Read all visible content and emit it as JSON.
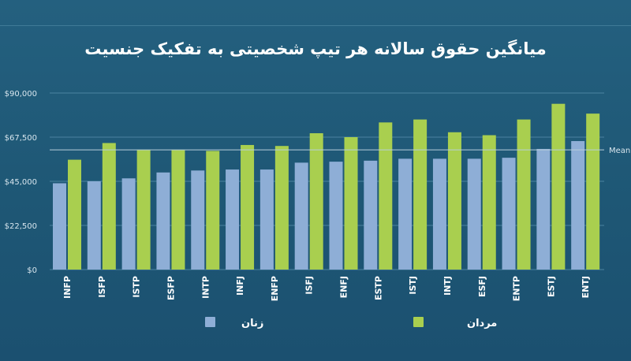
{
  "colors": {
    "background": "#1f5877",
    "women": "#8eaed6",
    "men": "#a9cf4f",
    "grid": "#4b83a0",
    "mean_line": "#b9cfdb"
  },
  "chart_data": {
    "type": "bar",
    "title": "میانگین حقوق سالانه هر تیپ شخصیتی به تفکیک جنسیت",
    "xlabel": "",
    "ylabel": "",
    "ylim": [
      0,
      90000
    ],
    "yticks": [
      0,
      22500,
      45000,
      67500,
      90000
    ],
    "ytick_labels": [
      "$0",
      "$22,500",
      "$45,000",
      "$67,500",
      "$90,000"
    ],
    "grid": true,
    "legend_position": "bottom",
    "categories": [
      "INFP",
      "ISFP",
      "ISTP",
      "ESFP",
      "INTP",
      "INFJ",
      "ENFP",
      "ISFJ",
      "ENFJ",
      "ESTP",
      "ISTJ",
      "INTJ",
      "ESFJ",
      "ENTP",
      "ESTJ",
      "ENTJ"
    ],
    "series": [
      {
        "name": "زنان",
        "values": [
          44000,
          45000,
          46500,
          49500,
          50500,
          51000,
          51000,
          54500,
          55000,
          55500,
          56500,
          56500,
          56500,
          57000,
          61500,
          65500
        ]
      },
      {
        "name": "مردان",
        "values": [
          56000,
          64500,
          61000,
          61000,
          60500,
          63500,
          63000,
          69500,
          67500,
          75000,
          76500,
          70000,
          68500,
          76500,
          84500,
          79500
        ]
      }
    ],
    "mean": {
      "value": 61000,
      "label": "Mean"
    }
  }
}
